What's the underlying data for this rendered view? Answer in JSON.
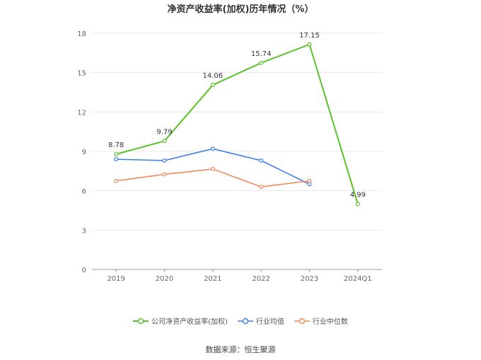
{
  "chart_data": {
    "type": "line",
    "title": "净资产收益率(加权)历年情况（%）",
    "categories": [
      "2019",
      "2020",
      "2021",
      "2022",
      "2023",
      "2024Q1"
    ],
    "ylim": [
      0,
      18
    ],
    "yticks": [
      0,
      3,
      6,
      9,
      12,
      15,
      18
    ],
    "grid": true,
    "legend_position": "bottom",
    "series": [
      {
        "name": "公司净资产收益率(加权)",
        "color": "#5ac229",
        "values": [
          8.78,
          9.79,
          14.06,
          15.74,
          17.15,
          4.99
        ],
        "labels": [
          "8.78",
          "9.79",
          "14.06",
          "15.74",
          "17.15",
          "4.99"
        ]
      },
      {
        "name": "行业均值",
        "color": "#3f7ee0",
        "values": [
          8.4,
          8.3,
          9.2,
          8.3,
          6.5,
          null
        ]
      },
      {
        "name": "行业中位数",
        "color": "#f0885a",
        "values": [
          6.75,
          7.25,
          7.65,
          6.3,
          6.75,
          null
        ]
      }
    ]
  },
  "source": "数据来源：恒生聚源"
}
